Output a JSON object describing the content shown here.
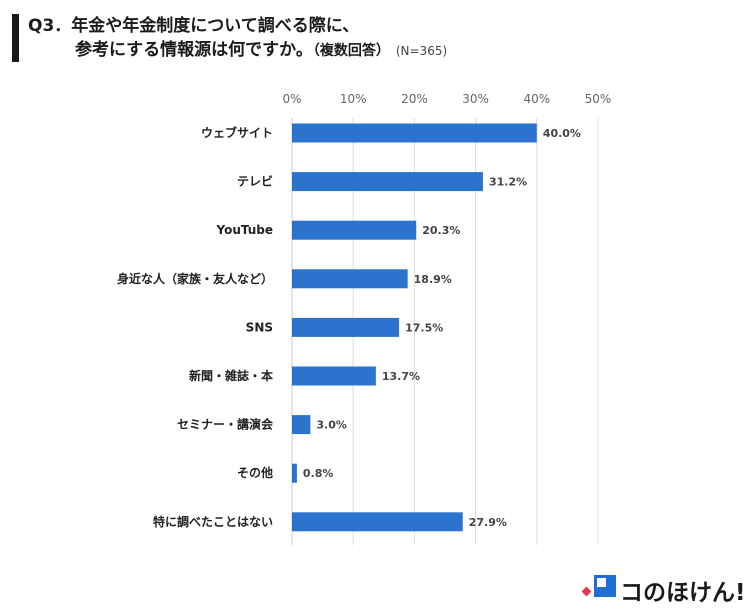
{
  "title": {
    "line1": "Q3．年金や年金制度について調べる際に、",
    "line2": "参考にする情報源は何ですか。",
    "subtitle": "（複数回答）",
    "sample": "(N=365)"
  },
  "chart_data": {
    "type": "bar",
    "orientation": "horizontal",
    "categories": [
      "ウェブサイト",
      "テレビ",
      "YouTube",
      "身近な人（家族・友人など）",
      "SNS",
      "新聞・雑誌・本",
      "セミナー・講演会",
      "その他",
      "特に調べたことはない"
    ],
    "values": [
      40.0,
      31.2,
      20.3,
      18.9,
      17.5,
      13.7,
      3.0,
      0.8,
      27.9
    ],
    "value_labels": [
      "40.0%",
      "31.2%",
      "20.3%",
      "18.9%",
      "17.5%",
      "13.7%",
      "3.0%",
      "0.8%",
      "27.9%"
    ],
    "xticks": [
      "0%",
      "10%",
      "20%",
      "30%",
      "40%",
      "50%"
    ],
    "xlim": [
      0,
      50
    ],
    "grid": true,
    "bar_color": "#2b73cc"
  },
  "brand": {
    "name": "コのほけん!",
    "colors": {
      "red": "#e8384f",
      "blue": "#1f6fd1"
    }
  }
}
